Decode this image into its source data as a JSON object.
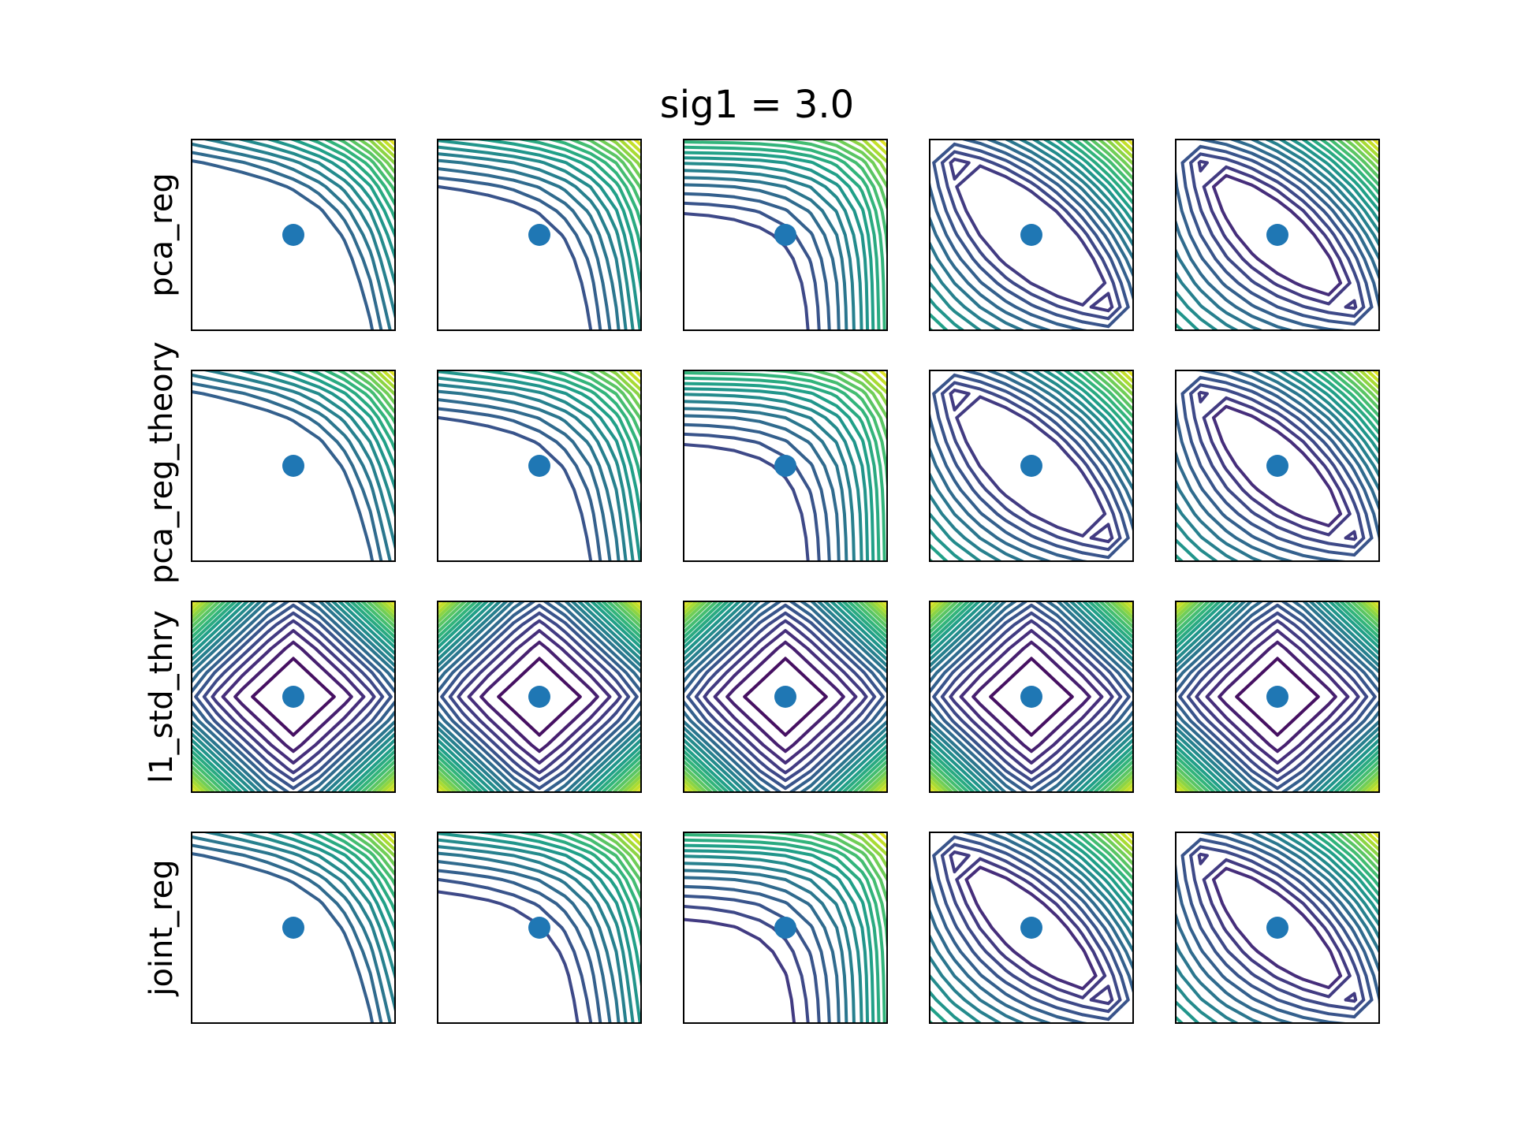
{
  "figure": {
    "title": "sig1 = 3.0"
  },
  "chart_data": {
    "type": "contour",
    "title": "sig1 = 3.0",
    "layout": "4x5 grid of contour subplots, no axis ticks",
    "rows": [
      "pca_reg",
      "pca_reg_theory",
      "l1_std_thry",
      "joint_reg"
    ],
    "columns": 5,
    "colormap": "viridis",
    "marker": {
      "color": "#1f77b4",
      "position": "panel center"
    },
    "grid": false,
    "panels": [
      [
        {
          "pattern": "diag",
          "tilt": 0.95,
          "minLevel": 0.55,
          "marker": true
        },
        {
          "pattern": "diag",
          "tilt": 0.85,
          "minLevel": 0.45,
          "marker": true
        },
        {
          "pattern": "diag",
          "tilt": 0.75,
          "minLevel": 0.35,
          "marker": true
        },
        {
          "pattern": "saddle",
          "tilt": 0.5,
          "minLevel": 0.3,
          "marker": true
        },
        {
          "pattern": "saddle",
          "tilt": 0.25,
          "minLevel": 0.25,
          "marker": true
        }
      ],
      [
        {
          "pattern": "diag",
          "tilt": 0.95,
          "minLevel": 0.55,
          "marker": true
        },
        {
          "pattern": "diag",
          "tilt": 0.85,
          "minLevel": 0.45,
          "marker": true
        },
        {
          "pattern": "diag",
          "tilt": 0.75,
          "minLevel": 0.35,
          "marker": true
        },
        {
          "pattern": "saddle",
          "tilt": 0.5,
          "minLevel": 0.3,
          "marker": true
        },
        {
          "pattern": "saddle",
          "tilt": 0.25,
          "minLevel": 0.25,
          "marker": true
        }
      ],
      [
        {
          "pattern": "diamond",
          "tilt": 0,
          "minLevel": 0.05,
          "marker": true
        },
        {
          "pattern": "diamond",
          "tilt": 0,
          "minLevel": 0.05,
          "marker": true
        },
        {
          "pattern": "diamond",
          "tilt": 0,
          "minLevel": 0.05,
          "marker": true
        },
        {
          "pattern": "diamond",
          "tilt": 0,
          "minLevel": 0.05,
          "marker": true
        },
        {
          "pattern": "diamond",
          "tilt": 0,
          "minLevel": 0.05,
          "marker": true
        }
      ],
      [
        {
          "pattern": "diag",
          "tilt": 0.95,
          "minLevel": 0.55,
          "marker": true
        },
        {
          "pattern": "diag",
          "tilt": 0.85,
          "minLevel": 0.35,
          "marker": true
        },
        {
          "pattern": "diag",
          "tilt": 0.75,
          "minLevel": 0.3,
          "marker": true
        },
        {
          "pattern": "saddle",
          "tilt": 0.5,
          "minLevel": 0.25,
          "marker": true
        },
        {
          "pattern": "saddle",
          "tilt": 0.25,
          "minLevel": 0.25,
          "marker": true
        }
      ]
    ]
  }
}
